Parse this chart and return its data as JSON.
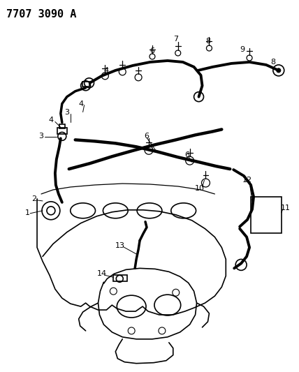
{
  "title": "7707 3090 A",
  "title_fontsize": 11,
  "bg_color": "#ffffff",
  "line_color": "#000000",
  "line_width": 1.2,
  "fig_width": 4.28,
  "fig_height": 5.33,
  "dpi": 100
}
